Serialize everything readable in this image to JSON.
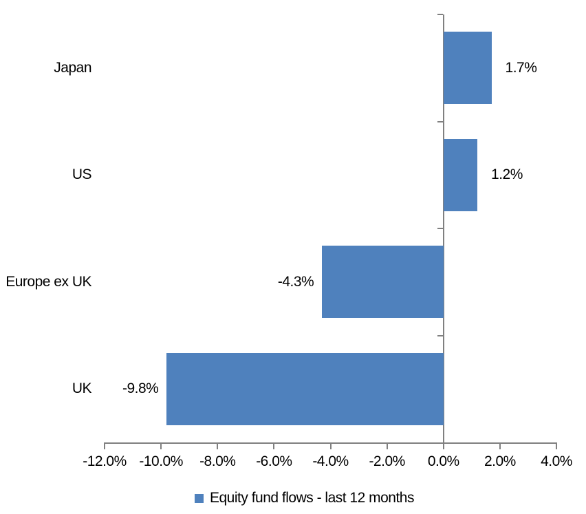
{
  "chart_data": {
    "type": "bar",
    "orientation": "horizontal",
    "title": "",
    "categories": [
      "Japan",
      "US",
      "Europe ex UK",
      "UK"
    ],
    "series": [
      {
        "name": "Equity fund flows - last 12 months",
        "values": [
          1.7,
          1.2,
          -4.3,
          -9.8
        ],
        "value_labels": [
          "1.7%",
          "1.2%",
          "-4.3%",
          "-9.8%"
        ],
        "color": "#4F81BD"
      }
    ],
    "xlim": [
      -12,
      4
    ],
    "x_ticks": [
      -12,
      -10,
      -8,
      -6,
      -4,
      -2,
      0,
      2,
      4
    ],
    "x_tick_labels": [
      "-12.0%",
      "-10.0%",
      "-8.0%",
      "-6.0%",
      "-4.0%",
      "-2.0%",
      "0.0%",
      "2.0%",
      "4.0%"
    ],
    "grid": false,
    "axis_color": "#808080",
    "text_color": "#000000",
    "legend": {
      "position": "bottom",
      "label": "Equity fund flows - last 12 months",
      "swatch_color": "#4F81BD"
    }
  }
}
